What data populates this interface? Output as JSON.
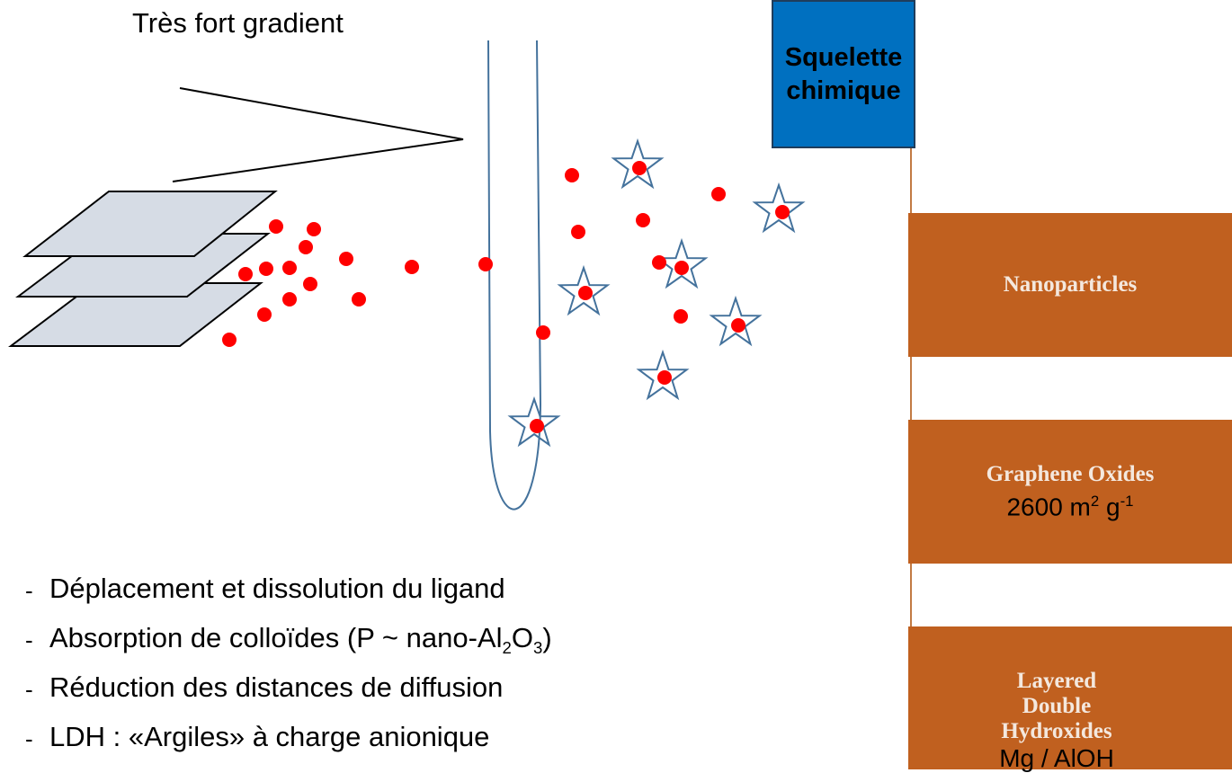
{
  "title": "Très fort gradient",
  "root": {
    "label": "Squelette chimique"
  },
  "branches": [
    {
      "label": "Nanoparticles"
    },
    {
      "label": "Graphene Oxides",
      "note": [
        "2600 m",
        "2",
        " g",
        "-1"
      ]
    },
    {
      "label": "Layered Double Hydroxides",
      "note": [
        "Mg / AlOH"
      ]
    }
  ],
  "bullets": [
    [
      "Déplacement et dissolution du ligand"
    ],
    [
      "Absorption de colloïdes (P ~ nano-Al",
      "2",
      "O",
      "3",
      ")"
    ],
    [
      "Réduction des distances de diffusion"
    ],
    [
      "LDH : «Argiles» à charge anionique"
    ]
  ]
}
